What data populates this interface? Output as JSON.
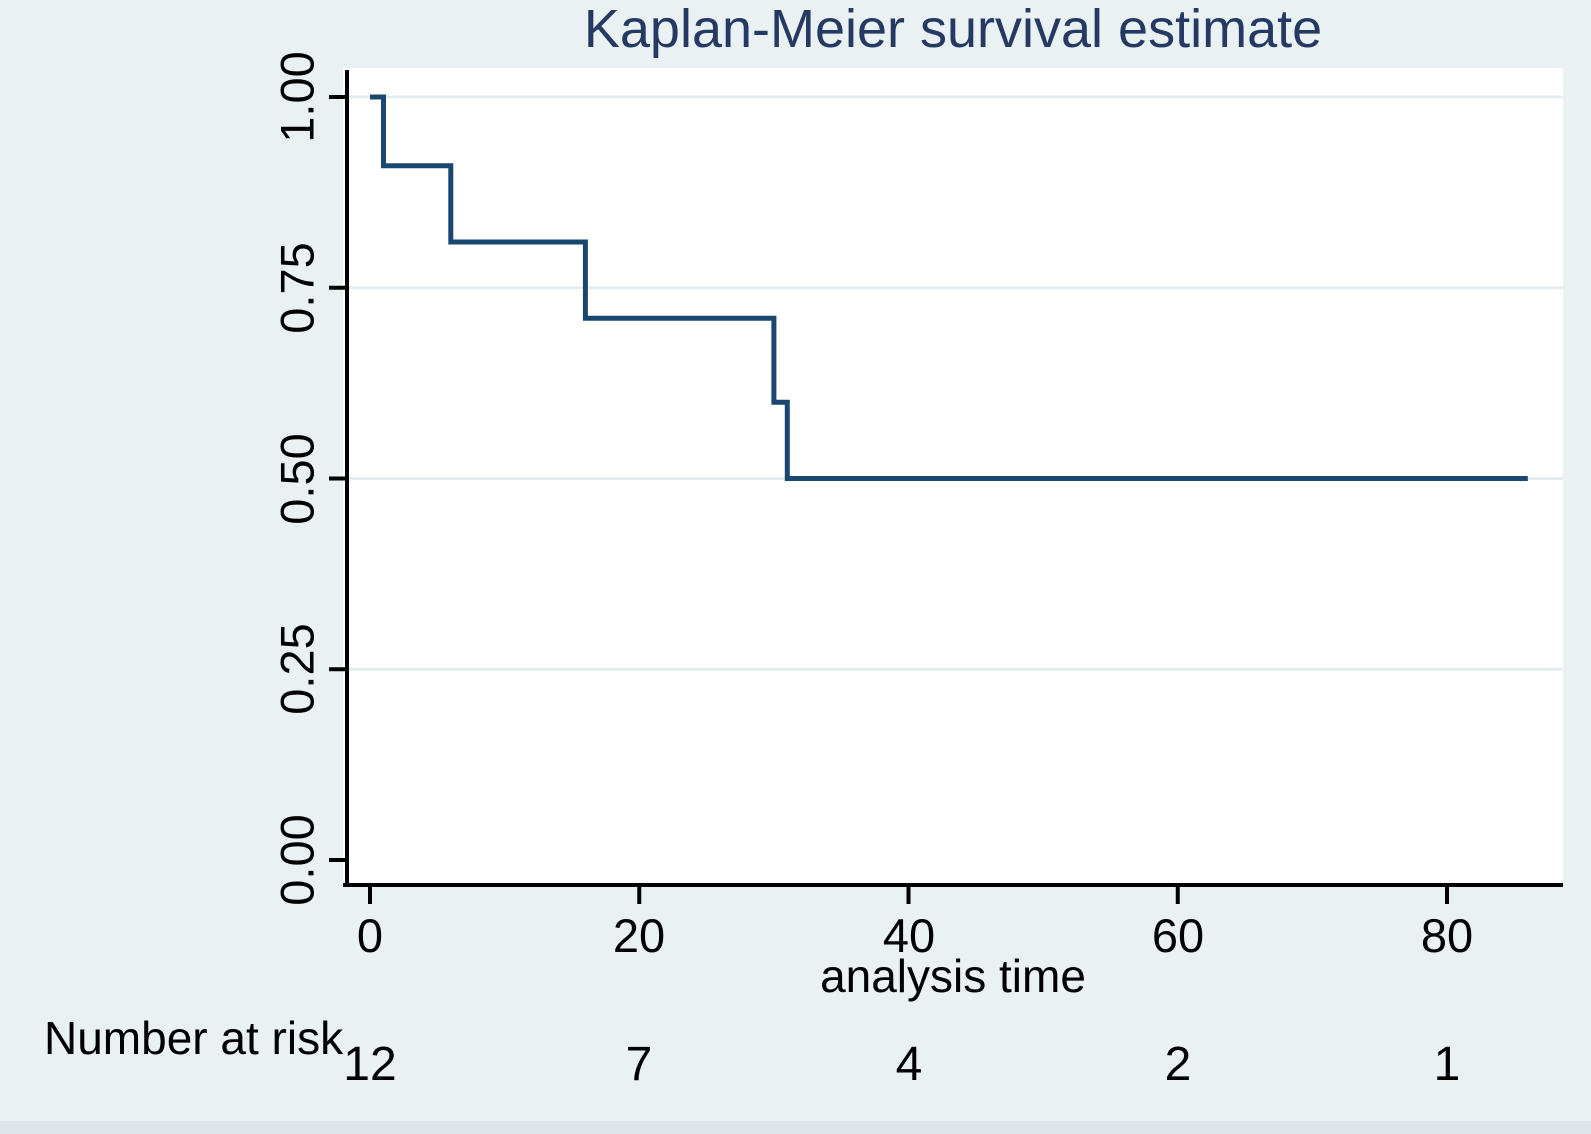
{
  "figure": {
    "background_color": "#eaf1f3",
    "plot_background_color": "#ffffff",
    "axis_color": "#000000",
    "grid_color": "#e3edf0",
    "title_color": "#253a63",
    "bottom_edge_color": "#dee6ea"
  },
  "chart_data": {
    "type": "line",
    "subtype": "kaplan-meier-step",
    "title": "Kaplan-Meier survival estimate",
    "xlabel": "analysis time",
    "ylabel": "",
    "xlim": [
      0,
      88
    ],
    "ylim": [
      0,
      1
    ],
    "xticks": [
      0,
      20,
      40,
      60,
      80
    ],
    "ytick_labels": [
      "0.00",
      "0.25",
      "0.50",
      "0.75",
      "1.00"
    ],
    "ytick_values": [
      0,
      0.25,
      0.5,
      0.75,
      1.0
    ],
    "grid": "horizontal gridlines at 0.25, 0.50, 0.75, 1.00",
    "legend_position": "none",
    "series": [
      {
        "name": "Kaplan-Meier survival estimate",
        "color": "#1a476f",
        "event_times": [
          1,
          6,
          16,
          30,
          31
        ],
        "survival_after_event": [
          0.91,
          0.81,
          0.71,
          0.6,
          0.5
        ],
        "curve_end_time": 86,
        "step_points": [
          [
            0,
            1.0
          ],
          [
            1,
            1.0
          ],
          [
            1,
            0.91
          ],
          [
            6,
            0.91
          ],
          [
            6,
            0.81
          ],
          [
            16,
            0.81
          ],
          [
            16,
            0.71
          ],
          [
            30,
            0.71
          ],
          [
            30,
            0.6
          ],
          [
            31,
            0.6
          ],
          [
            31,
            0.5
          ],
          [
            86,
            0.5
          ]
        ]
      }
    ],
    "number_at_risk": {
      "label": "Number at risk",
      "times": [
        0,
        20,
        40,
        60,
        80
      ],
      "counts": [
        12,
        7,
        4,
        2,
        1
      ]
    }
  }
}
